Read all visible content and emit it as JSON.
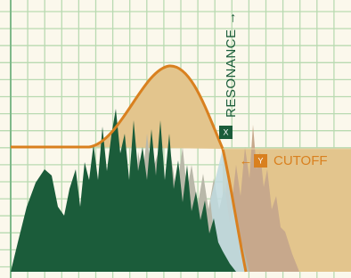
{
  "resonance": {
    "label": "RESONANCE →",
    "badge": "X"
  },
  "cutoff": {
    "arrow": "←",
    "badge": "Y",
    "label": "CUTOFF"
  }
}
